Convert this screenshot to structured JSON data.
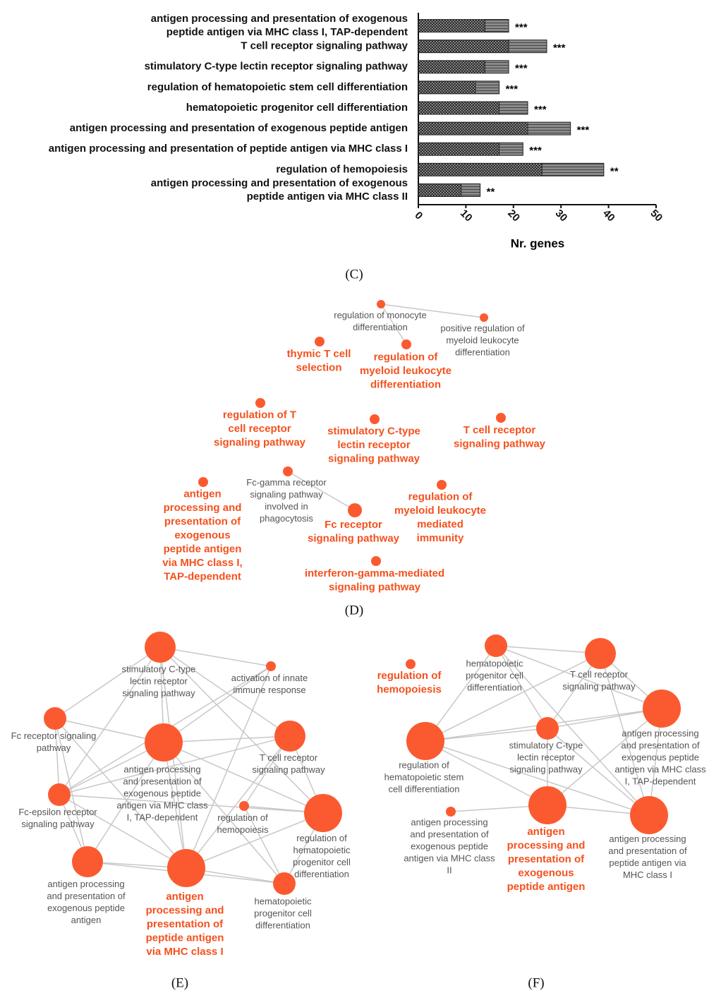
{
  "chart_data": {
    "type": "bar",
    "orientation": "horizontal",
    "categories": [
      [
        "antigen processing and presentation of exogenous",
        "peptide antigen via MHC class I, TAP-dependent"
      ],
      [
        "T cell receptor signaling pathway"
      ],
      [
        "stimulatory C-type lectin receptor signaling pathway"
      ],
      [
        "regulation of hematopoietic stem cell differentiation"
      ],
      [
        "hematopoietic progenitor cell differentiation"
      ],
      [
        "antigen processing and presentation of exogenous peptide antigen"
      ],
      [
        "antigen processing and presentation of peptide antigen via MHC class I"
      ],
      [
        "regulation of hemopoiesis"
      ],
      [
        "antigen processing and presentation of exogenous",
        "peptide antigen via MHC class II"
      ]
    ],
    "series": [
      {
        "color": "#2e2e2e",
        "pattern": "checker",
        "values": [
          14,
          19,
          14,
          12,
          17,
          23,
          17,
          26,
          9
        ]
      },
      {
        "color": "#8a8a8a",
        "pattern": "stripes",
        "values": [
          5,
          8,
          5,
          5,
          6,
          9,
          5,
          13,
          4
        ]
      }
    ],
    "annotations": [
      "***",
      "***",
      "***",
      "***",
      "***",
      "***",
      "***",
      "**",
      "**"
    ],
    "xlabel": "Nr. genes",
    "xlim": [
      0,
      50
    ],
    "xticks": [
      0,
      10,
      20,
      30,
      40,
      50
    ],
    "panel_label": "(C)"
  },
  "networks": {
    "node_color": "#fb5a30",
    "highlight_color": "#f4511e",
    "D": {
      "panel_label": "(D)",
      "nodes": [
        {
          "label": [
            "regulation of monocyte",
            "differentiation"
          ],
          "highlight": false
        },
        {
          "label": [
            "positive regulation of",
            "myeloid leukocyte",
            "differentiation"
          ],
          "highlight": false
        },
        {
          "label": [
            "regulation of",
            "myeloid leukocyte",
            "differentiation"
          ],
          "highlight": true
        },
        {
          "label": [
            "thymic T cell",
            "selection"
          ],
          "highlight": true
        },
        {
          "label": [
            "regulation of T",
            "cell receptor",
            "signaling pathway"
          ],
          "highlight": true
        },
        {
          "label": [
            "stimulatory C-type",
            "lectin receptor",
            "signaling pathway"
          ],
          "highlight": true
        },
        {
          "label": [
            "T cell receptor",
            "signaling pathway"
          ],
          "highlight": true
        },
        {
          "label": [
            "antigen",
            "processing and",
            "presentation of",
            "exogenous",
            "peptide antigen",
            "via MHC class I,",
            "TAP-dependent"
          ],
          "highlight": true
        },
        {
          "label": [
            "Fc-gamma receptor",
            "signaling pathway",
            "involved in",
            "phagocytosis"
          ],
          "highlight": false
        },
        {
          "label": [
            "Fc receptor",
            "signaling pathway"
          ],
          "highlight": true
        },
        {
          "label": [
            "regulation of",
            "myeloid leukocyte",
            "mediated",
            "immunity"
          ],
          "highlight": true
        },
        {
          "label": [
            "interferon-gamma-mediated",
            "signaling pathway"
          ],
          "highlight": true
        }
      ],
      "edges": [
        [
          0,
          1
        ],
        [
          0,
          2
        ],
        [
          8,
          9
        ]
      ]
    },
    "E": {
      "panel_label": "(E)",
      "nodes": [
        {
          "label": [
            "stimulatory C-type",
            "lectin receptor",
            "signaling pathway"
          ],
          "highlight": false
        },
        {
          "label": [
            "activation of innate",
            "immune response"
          ],
          "highlight": false
        },
        {
          "label": [
            "Fc receptor signaling",
            "pathway"
          ],
          "highlight": false
        },
        {
          "label": [
            "antigen processing",
            "and presentation of",
            "exogenous peptide",
            "antigen via MHC class",
            "I, TAP-dependent"
          ],
          "highlight": false
        },
        {
          "label": [
            "T cell receptor",
            "signaling pathway"
          ],
          "highlight": false
        },
        {
          "label": [
            "Fc-epsilon receptor",
            "signaling pathway"
          ],
          "highlight": false
        },
        {
          "label": [
            "regulation of",
            "hemopoiesis"
          ],
          "highlight": false
        },
        {
          "label": [
            "regulation of",
            "hematopoietic",
            "progenitor cell",
            "differentiation"
          ],
          "highlight": false
        },
        {
          "label": [
            "antigen processing",
            "and presentation of",
            "exogenous peptide",
            "antigen"
          ],
          "highlight": false
        },
        {
          "label": [
            "antigen",
            "processing and",
            "presentation of",
            "peptide antigen",
            "via MHC class I"
          ],
          "highlight": true
        },
        {
          "label": [
            "hematopoietic",
            "progenitor cell",
            "differentiation"
          ],
          "highlight": false
        }
      ],
      "edges": [
        [
          0,
          2
        ],
        [
          0,
          3
        ],
        [
          0,
          4
        ],
        [
          0,
          5
        ],
        [
          0,
          7
        ],
        [
          0,
          9
        ],
        [
          0,
          1
        ],
        [
          1,
          3
        ],
        [
          1,
          5
        ],
        [
          2,
          3
        ],
        [
          2,
          5
        ],
        [
          2,
          8
        ],
        [
          2,
          9
        ],
        [
          3,
          4
        ],
        [
          3,
          5
        ],
        [
          3,
          7
        ],
        [
          3,
          8
        ],
        [
          3,
          9
        ],
        [
          3,
          10
        ],
        [
          4,
          6
        ],
        [
          4,
          7
        ],
        [
          4,
          9
        ],
        [
          5,
          8
        ],
        [
          5,
          9
        ],
        [
          5,
          7
        ],
        [
          6,
          7
        ],
        [
          6,
          10
        ],
        [
          7,
          9
        ],
        [
          7,
          10
        ],
        [
          8,
          9
        ],
        [
          8,
          10
        ],
        [
          9,
          10
        ],
        [
          4,
          5
        ],
        [
          1,
          9
        ]
      ]
    },
    "F": {
      "panel_label": "(F)",
      "nodes": [
        {
          "label": [
            "regulation of",
            "hemopoiesis"
          ],
          "highlight": true
        },
        {
          "label": [
            "hematopoietic",
            "progenitor cell",
            "differentiation"
          ],
          "highlight": false
        },
        {
          "label": [
            "T cell receptor",
            "signaling pathway"
          ],
          "highlight": false
        },
        {
          "label": [
            "antigen processing",
            "and presentation of",
            "exogenous peptide",
            "antigen via MHC class",
            "I, TAP-dependent"
          ],
          "highlight": false
        },
        {
          "label": [
            "stimulatory C-type",
            "lectin receptor",
            "signaling pathway"
          ],
          "highlight": false
        },
        {
          "label": [
            "regulation of",
            "hematopoietic stem",
            "cell differentiation"
          ],
          "highlight": false
        },
        {
          "label": [
            "antigen processing",
            "and presentation of",
            "exogenous peptide",
            "antigen via MHC class",
            "II"
          ],
          "highlight": false
        },
        {
          "label": [
            "antigen",
            "processing and",
            "presentation of",
            "exogenous",
            "peptide antigen"
          ],
          "highlight": true
        },
        {
          "label": [
            "antigen processing",
            "and presentation of",
            "peptide antigen via",
            "MHC class I"
          ],
          "highlight": false
        }
      ],
      "edges": [
        [
          1,
          2
        ],
        [
          1,
          4
        ],
        [
          1,
          5
        ],
        [
          1,
          3
        ],
        [
          2,
          3
        ],
        [
          2,
          4
        ],
        [
          2,
          8
        ],
        [
          3,
          5
        ],
        [
          3,
          4
        ],
        [
          3,
          7
        ],
        [
          3,
          8
        ],
        [
          4,
          5
        ],
        [
          4,
          7
        ],
        [
          4,
          8
        ],
        [
          5,
          7
        ],
        [
          5,
          8
        ],
        [
          6,
          7
        ],
        [
          7,
          8
        ],
        [
          1,
          8
        ],
        [
          5,
          2
        ]
      ]
    }
  }
}
